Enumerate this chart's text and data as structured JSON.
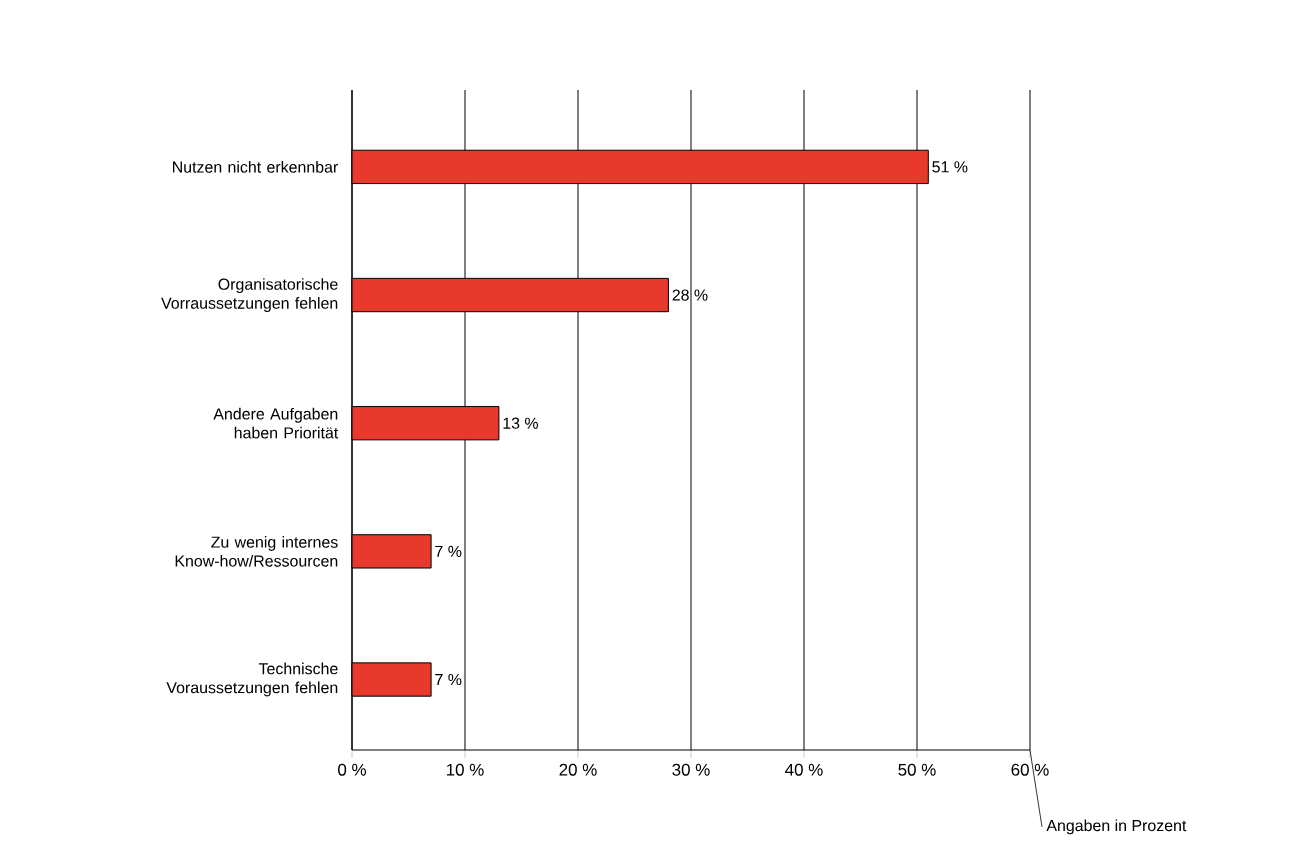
{
  "chart_data": {
    "type": "bar",
    "orientation": "horizontal",
    "categories": [
      "Nutzen nicht erkennbar",
      "Organisatorische Vorraussetzungen fehlen",
      "Andere Aufgaben haben Priorität",
      "Zu wenig internes Know-how/Ressourcen",
      "Technische Voraussetzungen fehlen"
    ],
    "values": [
      51,
      28,
      13,
      7,
      7
    ],
    "value_labels": [
      "51 %",
      "28 %",
      "13 %",
      "7 %",
      "7 %"
    ],
    "color": "#e8392d",
    "xlim": [
      0,
      60
    ],
    "xticks": [
      {
        "value": 0,
        "label": "0 %"
      },
      {
        "value": 10,
        "label": "10 %"
      },
      {
        "value": 20,
        "label": "20 %"
      },
      {
        "value": 30,
        "label": "30 %"
      },
      {
        "value": 40,
        "label": "40 %"
      },
      {
        "value": 50,
        "label": "50 %"
      },
      {
        "value": 60,
        "label": "60 %"
      }
    ],
    "xlabel": "Angaben in Prozent",
    "grid": "x"
  }
}
